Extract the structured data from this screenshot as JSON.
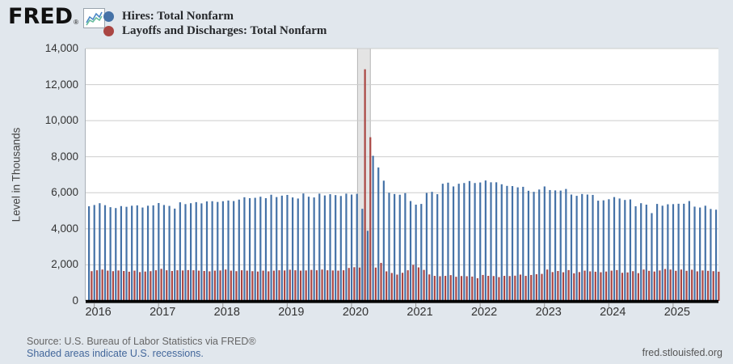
{
  "header": {
    "logo_text": "FRED",
    "logo_reg": "®"
  },
  "chart_data": {
    "type": "bar",
    "frequency": "monthly",
    "x_start": "2015-12",
    "x_end": "2025-09",
    "title": "",
    "xlabel": "",
    "ylabel": "Level in Thousands",
    "ylim": [
      0,
      14000
    ],
    "ytick_step": 2000,
    "ytick_labels": [
      "0",
      "2,000",
      "4,000",
      "6,000",
      "8,000",
      "10,000",
      "12,000",
      "14,000"
    ],
    "year_labels": [
      "2016",
      "2017",
      "2018",
      "2019",
      "2020",
      "2021",
      "2022",
      "2023",
      "2024",
      "2025"
    ],
    "grid": true,
    "legend_position": "top-left",
    "recession_bands": [
      {
        "from_index": 50,
        "to_index": 52,
        "note": "Feb 2020 - Apr 2020"
      }
    ],
    "series": [
      {
        "name": "Hires: Total Nonfarm",
        "color": "#4572a7",
        "values": [
          5250,
          5320,
          5420,
          5310,
          5200,
          5150,
          5260,
          5220,
          5280,
          5300,
          5180,
          5280,
          5300,
          5430,
          5320,
          5270,
          5120,
          5470,
          5370,
          5420,
          5480,
          5410,
          5520,
          5530,
          5490,
          5530,
          5570,
          5540,
          5620,
          5750,
          5700,
          5720,
          5780,
          5700,
          5890,
          5760,
          5840,
          5880,
          5740,
          5680,
          5960,
          5780,
          5740,
          5950,
          5850,
          5920,
          5870,
          5820,
          5950,
          5900,
          5940,
          5110,
          3890,
          8050,
          7400,
          6670,
          6000,
          5930,
          5890,
          5980,
          5540,
          5340,
          5380,
          5990,
          6050,
          5920,
          6500,
          6560,
          6350,
          6500,
          6540,
          6650,
          6540,
          6570,
          6680,
          6580,
          6580,
          6470,
          6380,
          6370,
          6300,
          6330,
          6110,
          6050,
          6180,
          6350,
          6150,
          6130,
          6120,
          6210,
          5900,
          5830,
          5930,
          5900,
          5880,
          5560,
          5580,
          5640,
          5760,
          5680,
          5600,
          5630,
          5250,
          5420,
          5340,
          4870,
          5380,
          5280,
          5360,
          5370,
          5390,
          5390,
          5540,
          5230,
          5180,
          5280,
          5100,
          5060
        ]
      },
      {
        "name": "Layoffs and Discharges: Total Nonfarm",
        "color": "#aa4643",
        "values": [
          1650,
          1700,
          1740,
          1680,
          1650,
          1690,
          1660,
          1620,
          1680,
          1600,
          1630,
          1650,
          1700,
          1780,
          1700,
          1660,
          1700,
          1690,
          1710,
          1700,
          1680,
          1660,
          1640,
          1680,
          1690,
          1740,
          1680,
          1650,
          1700,
          1680,
          1650,
          1630,
          1680,
          1640,
          1680,
          1700,
          1690,
          1730,
          1700,
          1680,
          1690,
          1720,
          1700,
          1740,
          1700,
          1690,
          1680,
          1700,
          1830,
          1870,
          1850,
          12850,
          9080,
          1850,
          2110,
          1640,
          1550,
          1460,
          1560,
          1700,
          2000,
          1860,
          1720,
          1470,
          1390,
          1370,
          1390,
          1430,
          1340,
          1380,
          1370,
          1350,
          1260,
          1440,
          1390,
          1380,
          1320,
          1390,
          1380,
          1400,
          1460,
          1390,
          1440,
          1480,
          1500,
          1740,
          1600,
          1660,
          1590,
          1710,
          1530,
          1600,
          1680,
          1640,
          1620,
          1590,
          1630,
          1680,
          1710,
          1560,
          1580,
          1650,
          1540,
          1740,
          1670,
          1630,
          1690,
          1770,
          1740,
          1670,
          1740,
          1670,
          1730,
          1640,
          1690,
          1670,
          1650,
          1620
        ]
      }
    ],
    "colors": {
      "background": "#e1e7ed",
      "plot_background": "#ffffff",
      "gridline": "#cccccc",
      "axis": "#000000",
      "recession_fill": "#e4e4e4",
      "recession_edge": "#b5b5b5",
      "hires": "#4572a7",
      "layoffs": "#aa4643"
    }
  },
  "footer": {
    "source": "Source: U.S. Bureau of Labor Statistics via FRED®",
    "note_link": "Shaded areas indicate U.S. recessions.",
    "site": "fred.stlouisfed.org"
  }
}
